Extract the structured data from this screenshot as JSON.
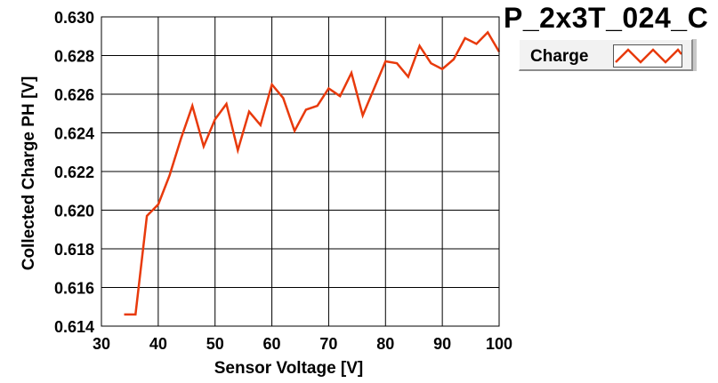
{
  "chart_data": {
    "type": "line",
    "title": "P_2x3T_024_C",
    "xlabel": "Sensor Voltage [V]",
    "ylabel": "Collected Charge PH [V]",
    "xlim": [
      30,
      100
    ],
    "ylim": [
      0.614,
      0.63
    ],
    "xticks": [
      "30",
      "40",
      "50",
      "60",
      "70",
      "80",
      "90",
      "100"
    ],
    "yticks": [
      "0.614",
      "0.616",
      "0.618",
      "0.620",
      "0.622",
      "0.624",
      "0.626",
      "0.628",
      "0.630"
    ],
    "grid": true,
    "legend": "top-right",
    "series": [
      {
        "name": "Charge",
        "color": "#e83a0c",
        "x": [
          34,
          36,
          38,
          40,
          42,
          44,
          46,
          48,
          50,
          52,
          54,
          56,
          58,
          60,
          62,
          64,
          66,
          68,
          70,
          72,
          74,
          76,
          78,
          80,
          82,
          84,
          86,
          88,
          90,
          92,
          94,
          96,
          98,
          100
        ],
        "y": [
          0.6146,
          0.6146,
          0.6197,
          0.6203,
          0.6218,
          0.6237,
          0.6254,
          0.6233,
          0.6247,
          0.6255,
          0.6231,
          0.6251,
          0.6244,
          0.6265,
          0.6258,
          0.6241,
          0.6252,
          0.6254,
          0.6263,
          0.6259,
          0.6271,
          0.6249,
          0.6263,
          0.6277,
          0.6276,
          0.6269,
          0.6285,
          0.6276,
          0.6273,
          0.6278,
          0.6289,
          0.6286,
          0.6292,
          0.6282
        ]
      }
    ]
  }
}
